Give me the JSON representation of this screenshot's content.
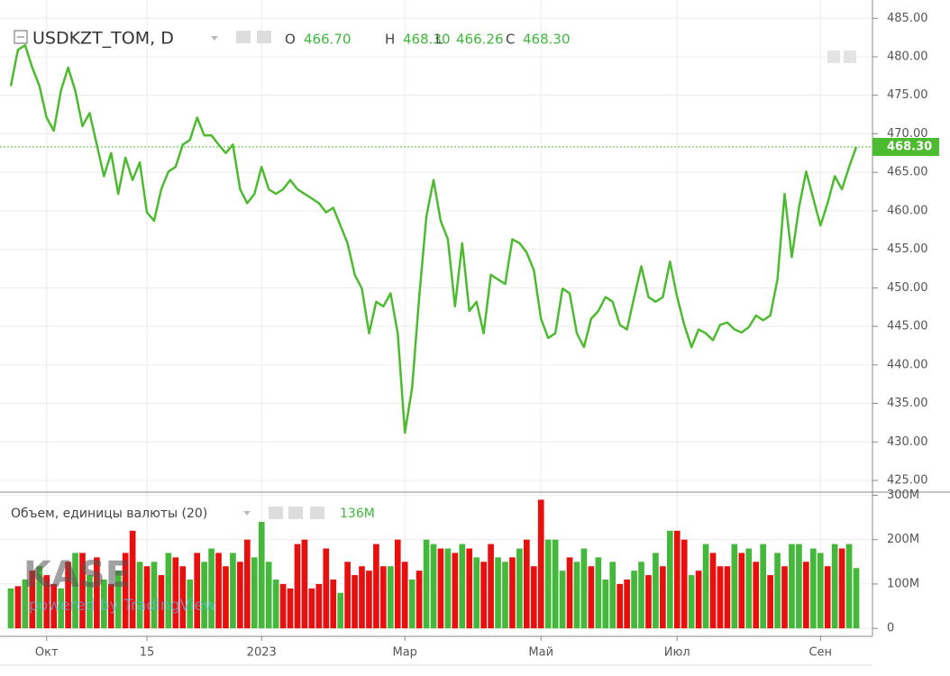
{
  "chart_data": [
    {
      "type": "line",
      "title": "USDKZT_TOM, D",
      "color": "#4cbb2f",
      "ohlc_labels": [
        "O",
        "H",
        "L",
        "C"
      ],
      "ohlc_values": [
        466.7,
        468.3,
        466.26,
        468.3
      ],
      "ohlc_value_labels": [
        "466.70",
        "468.30",
        "466.26",
        "468.30"
      ],
      "values": [
        476.2,
        480.9,
        481.5,
        478.6,
        476.2,
        472.1,
        470.4,
        475.6,
        478.6,
        475.6,
        471.0,
        472.7,
        468.6,
        464.5,
        467.5,
        462.2,
        466.9,
        464.0,
        466.3,
        459.8,
        458.7,
        462.8,
        465.1,
        465.7,
        468.6,
        469.2,
        472.1,
        469.8,
        469.8,
        468.6,
        467.5,
        468.6,
        462.8,
        461.0,
        462.2,
        465.7,
        462.8,
        462.2,
        462.8,
        464.0,
        462.8,
        462.2,
        461.6,
        461.0,
        459.8,
        460.4,
        458.1,
        455.8,
        451.7,
        449.9,
        444.1,
        448.2,
        447.6,
        449.3,
        444.1,
        431.2,
        437.0,
        448.8,
        459.3,
        464.0,
        458.7,
        456.3,
        447.6,
        455.8,
        447.0,
        448.2,
        444.1,
        451.7,
        451.1,
        450.5,
        456.3,
        455.8,
        454.6,
        452.3,
        446.0,
        443.5,
        444.1,
        449.9,
        449.3,
        444.1,
        442.3,
        446.0,
        447.0,
        448.8,
        448.2,
        445.2,
        444.6,
        448.8,
        452.8,
        448.8,
        448.2,
        448.8,
        453.4,
        448.8,
        445.2,
        442.3,
        444.6,
        444.1,
        443.2,
        445.2,
        445.5,
        444.6,
        444.2,
        444.9,
        446.4,
        445.8,
        446.4,
        451.1,
        462.2,
        454.0,
        460.4,
        465.1,
        461.6,
        458.1,
        461.0,
        464.5,
        462.8,
        465.7,
        468.3
      ],
      "ylim": [
        423.6,
        486.2
      ],
      "yticks": [
        {
          "value": 425,
          "label": "425.00"
        },
        {
          "value": 430,
          "label": "430.00"
        },
        {
          "value": 435,
          "label": "435.00"
        },
        {
          "value": 440,
          "label": "440.00"
        },
        {
          "value": 445,
          "label": "445.00"
        },
        {
          "value": 450,
          "label": "450.00"
        },
        {
          "value": 455,
          "label": "455.00"
        },
        {
          "value": 460,
          "label": "460.00"
        },
        {
          "value": 465,
          "label": "465.00"
        },
        {
          "value": 470,
          "label": "470.00"
        },
        {
          "value": 475,
          "label": "475.00"
        },
        {
          "value": 480,
          "label": "480.00"
        },
        {
          "value": 485,
          "label": "485.00"
        }
      ],
      "grid": true
    },
    {
      "type": "bar",
      "title": "Объем, единицы валюты (20)",
      "last_value_label": "136M",
      "categories": [
        null,
        null,
        null,
        null,
        null,
        "Окт",
        null,
        null,
        null,
        null,
        null,
        null,
        null,
        null,
        null,
        null,
        null,
        null,
        null,
        "15",
        null,
        null,
        null,
        null,
        null,
        null,
        null,
        null,
        null,
        null,
        null,
        null,
        null,
        null,
        null,
        "2023",
        null,
        null,
        null,
        null,
        null,
        null,
        null,
        null,
        null,
        null,
        null,
        null,
        null,
        null,
        null,
        null,
        null,
        null,
        null,
        "Мар",
        null,
        null,
        null,
        null,
        null,
        null,
        null,
        null,
        null,
        null,
        null,
        null,
        null,
        null,
        null,
        null,
        null,
        null,
        "Май",
        null,
        null,
        null,
        null,
        null,
        null,
        null,
        null,
        null,
        null,
        null,
        null,
        null,
        null,
        null,
        null,
        null,
        null,
        "Июл",
        null,
        null,
        null,
        null,
        null,
        null,
        null,
        null,
        null,
        null,
        null,
        null,
        null,
        null,
        null,
        null,
        null,
        null,
        null,
        "Сен",
        null,
        null,
        null,
        null,
        null
      ],
      "values": [
        90000000,
        95000000,
        110000000,
        130000000,
        140000000,
        120000000,
        100000000,
        90000000,
        150000000,
        170000000,
        170000000,
        120000000,
        160000000,
        110000000,
        100000000,
        130000000,
        170000000,
        220000000,
        150000000,
        140000000,
        150000000,
        120000000,
        170000000,
        160000000,
        140000000,
        110000000,
        170000000,
        150000000,
        180000000,
        170000000,
        140000000,
        170000000,
        150000000,
        200000000,
        160000000,
        240000000,
        150000000,
        110000000,
        100000000,
        90000000,
        190000000,
        200000000,
        90000000,
        100000000,
        180000000,
        110000000,
        80000000,
        150000000,
        120000000,
        140000000,
        130000000,
        190000000,
        140000000,
        140000000,
        200000000,
        150000000,
        110000000,
        130000000,
        200000000,
        190000000,
        180000000,
        180000000,
        170000000,
        190000000,
        180000000,
        160000000,
        150000000,
        190000000,
        160000000,
        150000000,
        160000000,
        180000000,
        200000000,
        140000000,
        290000000,
        200000000,
        200000000,
        130000000,
        160000000,
        150000000,
        180000000,
        140000000,
        160000000,
        110000000,
        150000000,
        100000000,
        110000000,
        130000000,
        150000000,
        120000000,
        170000000,
        140000000,
        220000000,
        220000000,
        200000000,
        120000000,
        130000000,
        190000000,
        170000000,
        140000000,
        140000000,
        190000000,
        170000000,
        180000000,
        150000000,
        190000000,
        120000000,
        170000000,
        140000000,
        190000000,
        190000000,
        150000000,
        180000000,
        170000000,
        140000000,
        190000000,
        180000000,
        190000000,
        136000000
      ],
      "colors": [
        "#44b83a",
        "#e80f0f",
        "#44b83a",
        "#e80f0f",
        "#44b83a",
        "#e80f0f",
        "#e80f0f",
        "#44b83a",
        "#e80f0f",
        "#44b83a",
        "#e80f0f",
        "#44b83a",
        "#e80f0f",
        "#44b83a",
        "#e80f0f",
        "#44b83a",
        "#e80f0f",
        "#e80f0f",
        "#44b83a",
        "#e80f0f",
        "#44b83a",
        "#e80f0f",
        "#44b83a",
        "#e80f0f",
        "#e80f0f",
        "#44b83a",
        "#e80f0f",
        "#44b83a",
        "#44b83a",
        "#e80f0f",
        "#e80f0f",
        "#44b83a",
        "#e80f0f",
        "#e80f0f",
        "#44b83a",
        "#44b83a",
        "#44b83a",
        "#44b83a",
        "#e80f0f",
        "#e80f0f",
        "#e80f0f",
        "#e80f0f",
        "#e80f0f",
        "#e80f0f",
        "#e80f0f",
        "#e80f0f",
        "#44b83a",
        "#e80f0f",
        "#e80f0f",
        "#e80f0f",
        "#e80f0f",
        "#e80f0f",
        "#e80f0f",
        "#44b83a",
        "#e80f0f",
        "#e80f0f",
        "#44b83a",
        "#e80f0f",
        "#44b83a",
        "#44b83a",
        "#e80f0f",
        "#44b83a",
        "#e80f0f",
        "#44b83a",
        "#e80f0f",
        "#44b83a",
        "#e80f0f",
        "#e80f0f",
        "#44b83a",
        "#44b83a",
        "#e80f0f",
        "#44b83a",
        "#e80f0f",
        "#e80f0f",
        "#e80f0f",
        "#44b83a",
        "#44b83a",
        "#44b83a",
        "#e80f0f",
        "#44b83a",
        "#44b83a",
        "#e80f0f",
        "#44b83a",
        "#44b83a",
        "#44b83a",
        "#e80f0f",
        "#e80f0f",
        "#44b83a",
        "#44b83a",
        "#e80f0f",
        "#44b83a",
        "#e80f0f",
        "#44b83a",
        "#e80f0f",
        "#e80f0f",
        "#44b83a",
        "#e80f0f",
        "#44b83a",
        "#e80f0f",
        "#e80f0f",
        "#e80f0f",
        "#44b83a",
        "#e80f0f",
        "#44b83a",
        "#e80f0f",
        "#44b83a",
        "#e80f0f",
        "#44b83a",
        "#e80f0f",
        "#44b83a",
        "#44b83a",
        "#e80f0f",
        "#44b83a",
        "#44b83a",
        "#e80f0f",
        "#44b83a",
        "#e80f0f",
        "#44b83a",
        "#44b83a"
      ],
      "ylim": [
        -18000000,
        303000000
      ],
      "yticks": [
        0,
        {
          "value": 100000000,
          "label": "100M"
        },
        {
          "value": 200000000,
          "label": "200M"
        },
        {
          "value": 300000000,
          "label": "300M"
        }
      ],
      "grid": true
    }
  ],
  "branding": {
    "logo": "KASE",
    "powered": "powered by TradingView"
  }
}
